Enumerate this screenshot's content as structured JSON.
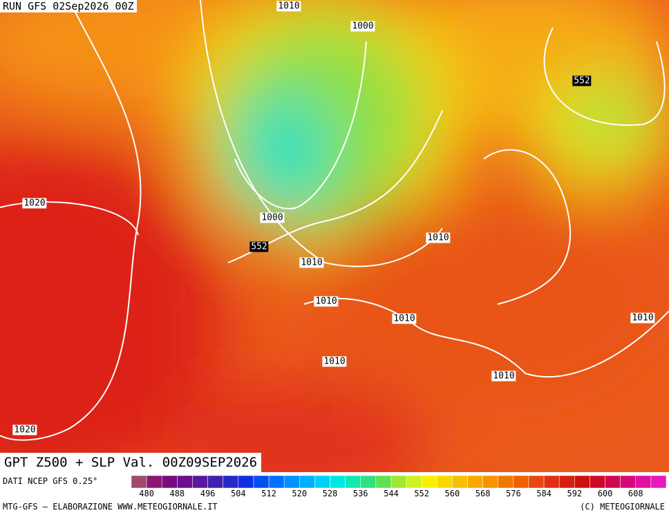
{
  "header": {
    "run": "RUN GFS 02Sep2026 00Z"
  },
  "map": {
    "labels": [
      "1010",
      "1000",
      "552",
      "1020",
      "1000",
      "552",
      "1010",
      "1010",
      "1010",
      "1010",
      "1010",
      "1010",
      "1010",
      "1020"
    ]
  },
  "title": "GPT Z500 + SLP Val. 00Z09SEP2026",
  "colorbar": {
    "source": "DATI NCEP GFS 0.25°",
    "ticks": [
      480,
      488,
      496,
      504,
      512,
      520,
      528,
      536,
      544,
      552,
      560,
      568,
      576,
      584,
      592,
      600,
      608
    ],
    "colors": [
      "#a04a6e",
      "#8a1670",
      "#7a0a80",
      "#6a1090",
      "#5a18a0",
      "#4020b0",
      "#2828c8",
      "#1030e0",
      "#0050f0",
      "#0070ff",
      "#0090ff",
      "#00b0ff",
      "#00d0f8",
      "#00e8e0",
      "#10e8b0",
      "#30e080",
      "#60e050",
      "#a0e830",
      "#d0f020",
      "#f8f000",
      "#f8d800",
      "#f8c000",
      "#f8a800",
      "#f89000",
      "#f07800",
      "#f06000",
      "#e84810",
      "#e03010",
      "#d82010",
      "#d01010",
      "#d00828",
      "#d00850",
      "#d80878",
      "#e010a0",
      "#e818c0"
    ]
  },
  "footer": {
    "left": "MTG-GFS – ELABORAZIONE WWW.METEOGIORNALE.IT",
    "right": "(C) METEOGIORNALE"
  }
}
